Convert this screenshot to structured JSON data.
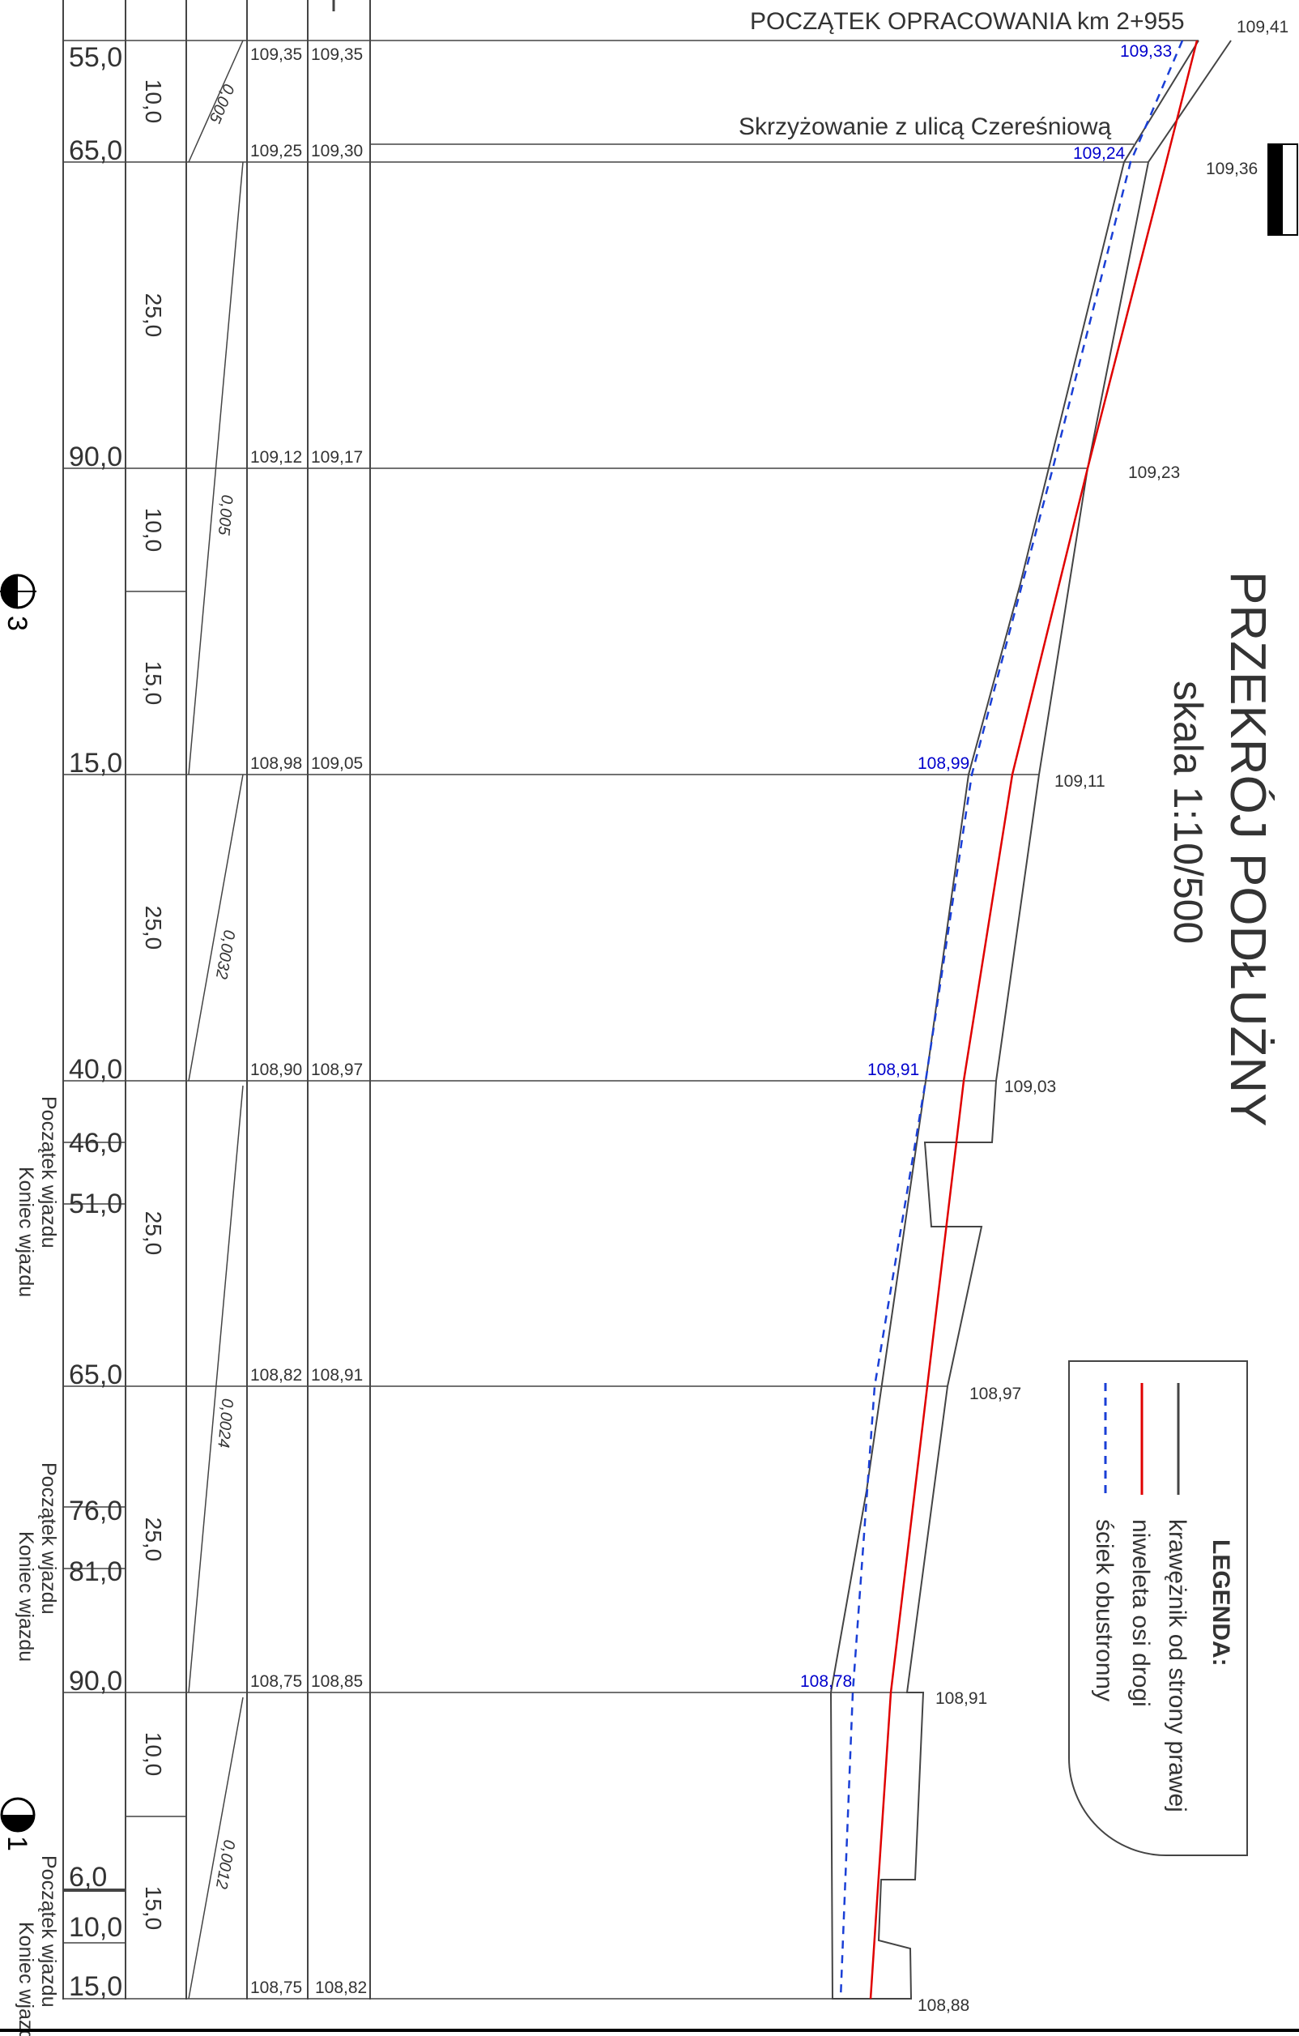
{
  "title": "PRZEKRÓJ PODŁUŻNY",
  "scale": "skala 1:10/500",
  "start_label": "POCZĄTEK OPRACOWANIA km 2+955",
  "intersection_label": "Skrzyżowanie z ulicą Czereśniową",
  "legend": {
    "title": "LEGENDA:",
    "items": [
      {
        "label": "krawężnik od strony prawej",
        "color": "#444444",
        "style": "solid"
      },
      {
        "label": "niweleta osi drogi",
        "color": "#e00000",
        "style": "solid"
      },
      {
        "label": "ściek obustronny",
        "color": "#1a3fd6",
        "style": "dashed"
      }
    ]
  },
  "stations": [
    {
      "label": "55,0",
      "elev_a": "109,35",
      "elev_b": "109,35"
    },
    {
      "label": "65,0",
      "elev_a": "109,25",
      "elev_b": "109,30"
    },
    {
      "label": "90,0",
      "elev_a": "109,12",
      "elev_b": "109,17"
    },
    {
      "label": "15,0",
      "elev_a": "108,98",
      "elev_b": "109,05"
    },
    {
      "label": "40,0",
      "elev_a": "108,90",
      "elev_b": "108,97"
    },
    {
      "label": "46,0",
      "elev_a": "",
      "elev_b": ""
    },
    {
      "label": "51,0",
      "elev_a": "",
      "elev_b": ""
    },
    {
      "label": "65,0",
      "elev_a": "108,82",
      "elev_b": "108,91"
    },
    {
      "label": "76,0",
      "elev_a": "",
      "elev_b": ""
    },
    {
      "label": "81,0",
      "elev_a": "",
      "elev_b": ""
    },
    {
      "label": "90,0",
      "elev_a": "108,75",
      "elev_b": "108,85"
    },
    {
      "label": "6,0",
      "elev_a": "",
      "elev_b": ""
    },
    {
      "label": "10,0",
      "elev_a": "",
      "elev_b": ""
    },
    {
      "label": "15,0",
      "elev_a": "108,75",
      "elev_b": "108,82"
    }
  ],
  "distances": [
    "10,0",
    "25,0",
    "10,0",
    "15,0",
    "25,0",
    "25,0",
    "25,0",
    "10,0",
    "15,0"
  ],
  "slopes": [
    "0,005",
    "0,005",
    "0,0032",
    "0,0024",
    "0,0012"
  ],
  "curb_labels": [
    "109,41",
    "109,36",
    "109,23",
    "109,11",
    "109,03",
    "108,97",
    "108,91",
    "108,88"
  ],
  "gutter_labels": [
    "109,33",
    "109,24",
    "108,99",
    "108,91",
    "108,78"
  ],
  "driveways": [
    {
      "start": "Początek wjazdu",
      "end": "Koniec wjazdu"
    },
    {
      "start": "Początek wjazdu",
      "end": "Koniec wjazdu"
    },
    {
      "start": "Początek wjazdu",
      "end": "Koniec wjazdu"
    }
  ],
  "markers": [
    "3",
    "1"
  ]
}
